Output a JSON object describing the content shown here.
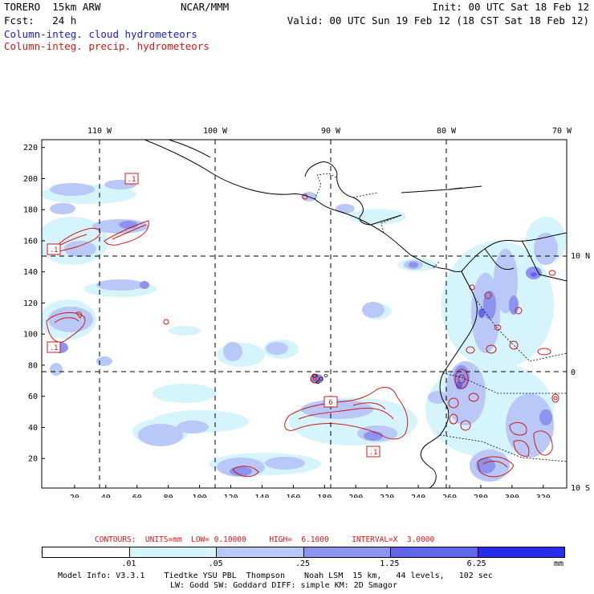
{
  "header": {
    "model": "TORERO  15km ARW",
    "center": "NCAR/MMM",
    "init": "Init: 00 UTC Sat 18 Feb 12",
    "fcst": "Fcst:   24 h",
    "valid": "Valid: 00 UTC Sun 19 Feb 12 (18 CST Sat 18 Feb 12)",
    "field_cloud": "Column-integ. cloud hydrometeors",
    "field_precip": "Column-integ. precip. hydrometeors"
  },
  "colors": {
    "cloud": "#1a1ad0",
    "precip": "#d01818"
  },
  "map": {
    "lon_labels": [
      "110 W",
      "100 W",
      "90 W",
      "80 W",
      "70 W"
    ],
    "lat_labels": [
      "10 N",
      "0",
      "10 S"
    ],
    "x_ticks": [
      "20",
      "40",
      "60",
      "80",
      "100",
      "120",
      "140",
      "160",
      "180",
      "200",
      "220",
      "240",
      "260",
      "280",
      "300",
      "320"
    ],
    "y_ticks": [
      "220",
      "200",
      "180",
      "160",
      "140",
      "120",
      "100",
      "80",
      "60",
      "40",
      "20"
    ],
    "contour_labels": [
      ".1",
      ".1",
      ".1",
      "6",
      ".1"
    ]
  },
  "contours_info": "CONTOURS:  UNITS=mm  LOW= 0.10000     HIGH=  6.1000     INTERVAL=X  3.0000",
  "colorbar": {
    "levels": [
      ".01",
      ".05",
      ".25",
      "1.25",
      "6.25"
    ],
    "unit": "mm",
    "colors": [
      "#ffffff",
      "#d6f4fb",
      "#b9c8f6",
      "#8e93ef",
      "#6266ea",
      "#2a2ee8"
    ]
  },
  "footer": {
    "line1": "Model Info: V3.3.1    Tiedtke YSU PBL  Thompson    Noah LSM  15 km,   44 levels,   102 sec",
    "line2": "LW: Godd SW: Goddard DIFF: simple KM: 2D Smagor"
  }
}
